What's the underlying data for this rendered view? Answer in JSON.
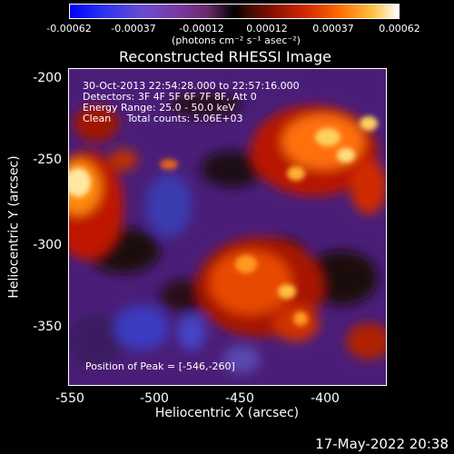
{
  "colorbar": {
    "ticks": [
      "-0.00062",
      "-0.00037",
      "-0.00012",
      "0.00012",
      "0.00037",
      "0.00062"
    ],
    "units": "(photons cm⁻² s⁻¹ asec⁻²)"
  },
  "title": "Reconstructed RHESSI Image",
  "annotations": {
    "time": "30-Oct-2013 22:54:28.000 to 22:57:16.000",
    "detectors": "Detectors: 3F 4F 5F 6F 7F 8F, Att 0",
    "energy": "Energy Range: 25.0 - 50.0 keV",
    "clean": "Clean     Total counts: 5.06E+03",
    "peak": "Position of Peak = [-546,-260]"
  },
  "axes": {
    "xlabel": "Heliocentric X (arcsec)",
    "ylabel": "Heliocentric Y (arcsec)",
    "xticks": [
      "-550",
      "-500",
      "-450",
      "-400"
    ],
    "yticks": [
      "-200",
      "-250",
      "-300",
      "-350"
    ]
  },
  "footer_date": "17-May-2022 20:38"
}
